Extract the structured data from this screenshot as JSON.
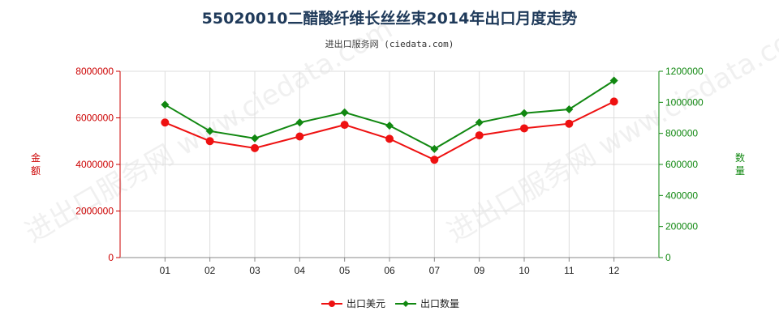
{
  "title": "55020010二醋酸纤维长丝丝束2014年出口月度走势",
  "subtitle": "进出口服务网 (ciedata.com)",
  "watermark": "进出口服务网 www.ciedata.com",
  "chart_data": {
    "type": "line",
    "categories": [
      "01",
      "02",
      "03",
      "04",
      "05",
      "06",
      "07",
      "09",
      "10",
      "11",
      "12"
    ],
    "series": [
      {
        "name": "出口美元",
        "axis": "left",
        "color": "#ee1111",
        "values": [
          5800000,
          5000000,
          4700000,
          5200000,
          5700000,
          5100000,
          4200000,
          5250000,
          5550000,
          5750000,
          6700000
        ]
      },
      {
        "name": "出口数量",
        "axis": "right",
        "color": "#118811",
        "values": [
          985000,
          815000,
          768000,
          870000,
          935000,
          850000,
          700000,
          870000,
          930000,
          955000,
          1140000
        ]
      }
    ],
    "y_left": {
      "label": "金额",
      "range": [
        0,
        8000000
      ],
      "ticks": [
        "0",
        "2000000",
        "4000000",
        "6000000",
        "8000000"
      ],
      "color": "#cc0000"
    },
    "y_right": {
      "label": "数量",
      "range": [
        0,
        1200000
      ],
      "ticks": [
        "0",
        "200000",
        "400000",
        "600000",
        "800000",
        "1000000",
        "1200000"
      ],
      "color": "#118811"
    },
    "grid": true,
    "legend": "bottom-center"
  }
}
